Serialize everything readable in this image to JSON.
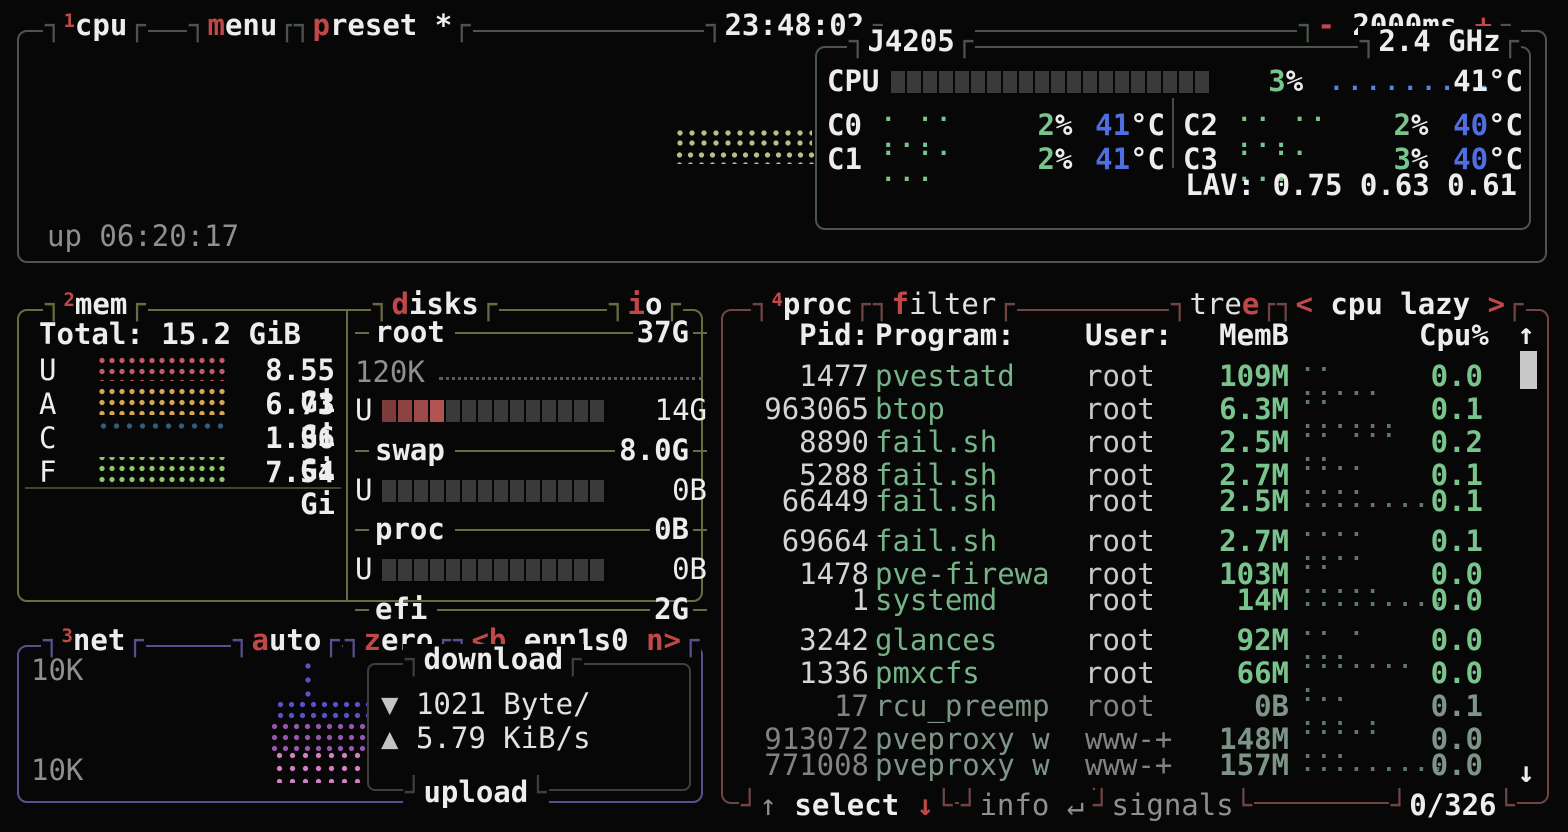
{
  "palette": {
    "background": "#070707",
    "text": "#ededed",
    "muted": "#8f8f8f",
    "accent_red": "#c04848",
    "value_green": "#79c48d",
    "program_green": "#74b488",
    "temp_blue": "#4f6fe0",
    "cpu_border": "#4a564a",
    "mem_border": "#6b6b40",
    "net_border": "#55518f",
    "proc_border": "#6e4444",
    "meter_block": "#3a3a3a",
    "meter_used_red": "#9e4949",
    "scrollbar": "#c8c8c8",
    "mem_used": "#c5596b",
    "mem_available": "#d8a553",
    "mem_cached": "#2f5e7e",
    "mem_free": "#8cc768",
    "net_download": "#5a50c8",
    "net_mid": "#9857ac",
    "net_upload": "#d27fc4",
    "cpu_graph": "#b5c287"
  },
  "topbar": {
    "num": "1",
    "title": "cpu",
    "menu_hot": "m",
    "menu_rest": "enu",
    "preset_hot": "p",
    "preset_rest": "reset *",
    "clock": "23:48:02",
    "minus": "-",
    "interval": "2000ms",
    "plus": "+"
  },
  "cpu": {
    "model": "J4205",
    "freq": "2.4 GHz",
    "uptime": "up 06:20:17",
    "total": {
      "label": "CPU",
      "pct": "3",
      "dots": ".........",
      "temp": "41°C"
    },
    "meter": {
      "blocks": 20,
      "filled": 0
    },
    "pct_unit": "%",
    "temp_unit": "°C",
    "cores": [
      {
        "name": "C0",
        "graph": ". .. ...",
        "pct": "2",
        "temp": "41"
      },
      {
        "name": "C1",
        "graph": ". .. ...",
        "pct": "2",
        "temp": "41"
      },
      {
        "name": "C2",
        "graph": ".. .. ...",
        "pct": "2",
        "temp": "40"
      },
      {
        "name": "C3",
        "graph": ". .. ...",
        "pct": "3",
        "temp": "40"
      }
    ],
    "lav": "LAV: 0.75 0.63 0.61"
  },
  "mem": {
    "num": "2",
    "title": "mem",
    "total_label": "Total:",
    "total_value": "15.2 GiB",
    "rows": [
      {
        "label": "U",
        "value": "8.55 Gi"
      },
      {
        "label": "A",
        "value": "6.73 Gi"
      },
      {
        "label": "C",
        "value": "1.36 Gi"
      },
      {
        "label": "F",
        "value": "7.54 Gi"
      }
    ]
  },
  "disks": {
    "title_hot": "d",
    "title_rest": "isks",
    "io_hot": "i",
    "io_rest": "o",
    "sections": [
      {
        "name": "root",
        "size": "37G",
        "io": "120K",
        "used_label": "U",
        "used": "14G",
        "meter": {
          "blocks": 14,
          "filled": 4
        }
      },
      {
        "name": "swap",
        "size": "8.0G",
        "used_label": "U",
        "used": "0B",
        "meter": {
          "blocks": 14,
          "filled": 0
        }
      },
      {
        "name": "proc",
        "size": "0B",
        "used_label": "U",
        "used": "0B",
        "meter": {
          "blocks": 14,
          "filled": 0
        }
      },
      {
        "name": "efi",
        "size": "2G"
      }
    ]
  },
  "net": {
    "num": "3",
    "title": "net",
    "auto_hot": "a",
    "auto_rest": "uto",
    "zero_hot": "z",
    "zero_rest": "ero",
    "iface_pre": "<b",
    "iface": "enp1s0",
    "iface_post": "n>",
    "scale_top": "10K",
    "scale_bottom": "10K",
    "download_label": "download",
    "download_arrow": "▼",
    "download_value": "1021 Byte/",
    "upload_arrow": "▲",
    "upload_value": "5.79 KiB/s",
    "upload_label": "upload"
  },
  "proc": {
    "num": "4",
    "title": "proc",
    "filter_hot": "f",
    "filter_rest": "ilter",
    "tree_pre": "tre",
    "tree_hot": "e",
    "sort_lt": "<",
    "sort": "cpu lazy",
    "sort_gt": ">",
    "headers": {
      "pid": "Pid:",
      "program": "Program:",
      "user": "User:",
      "mem": "MemB",
      "cpu": "Cpu%",
      "up_arrow": "↑"
    },
    "rows": [
      {
        "pid": "1477",
        "program": "pvestatd",
        "user": "root",
        "mem": "109M",
        "graph": ".. .....",
        "cpu": "0.0",
        "dim": false
      },
      {
        "pid": "963065",
        "program": "btop",
        "user": "root",
        "mem": "6.3M",
        "graph": ".. ......",
        "cpu": "0.1",
        "dim": false
      },
      {
        "pid": "8890",
        "program": "fail.sh",
        "user": "root",
        "mem": "2.5M",
        "graph": ".. ... ..",
        "cpu": "0.2",
        "dim": false
      },
      {
        "pid": "5288",
        "program": "fail.sh",
        "user": "root",
        "mem": "2.7M",
        "graph": ".... ....",
        "cpu": "0.1",
        "dim": false
      },
      {
        "pid": "66449",
        "program": "fail.sh",
        "user": "root",
        "mem": "2.5M",
        "graph": "........",
        "cpu": "0.1",
        "dim": false
      },
      {
        "pid": "69664",
        "program": "fail.sh",
        "user": "root",
        "mem": "2.7M",
        "graph": ".... ....",
        "cpu": "0.1",
        "dim": false
      },
      {
        "pid": "1478",
        "program": "pve-firewa",
        "user": "root",
        "mem": "103M",
        "graph": ".. .....",
        "cpu": "0.0",
        "dim": false
      },
      {
        "pid": "1",
        "program": "systemd",
        "user": "root",
        "mem": "14M",
        "graph": ".........",
        "cpu": "0.0",
        "dim": false
      },
      {
        "pid": "3242",
        "program": "glances",
        "user": "root",
        "mem": "92M",
        "graph": ".. . ...",
        "cpu": "0.0",
        "dim": false
      },
      {
        "pid": "1336",
        "program": "pmxcfs",
        "user": "root",
        "mem": "66M",
        "graph": "....... .",
        "cpu": "0.0",
        "dim": false
      },
      {
        "pid": "17",
        "program": "rcu_preemp",
        "user": "root",
        "mem": "0B",
        "graph": "... ... .",
        "cpu": "0.1",
        "dim": true
      },
      {
        "pid": "913072",
        "program": "pveproxy w",
        "user": "www-+",
        "mem": "148M",
        "graph": "..... ...",
        "cpu": "0.0",
        "dim": true
      },
      {
        "pid": "771008",
        "program": "pveproxy w",
        "user": "www-+",
        "mem": "157M",
        "graph": ".........",
        "cpu": "0.0",
        "dim": true
      }
    ],
    "down_arrow": "↓",
    "footer": {
      "up": "↑",
      "select": "select",
      "down": "↓",
      "info": "info",
      "enter": "↵",
      "signals": "signals",
      "count": "0/326"
    }
  }
}
